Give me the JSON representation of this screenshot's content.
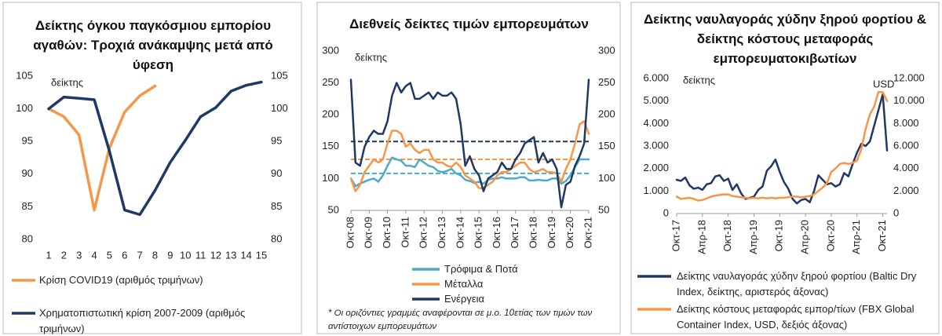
{
  "chart_data": [
    {
      "type": "line",
      "title": "Δείκτης όγκου παγκόσμιου εμπορίου αγαθών: Τροχιά ανάκαμψης μετά από ύφεση",
      "y_label": "δείκτης",
      "categories": [
        "1",
        "2",
        "3",
        "4",
        "5",
        "6",
        "7",
        "8",
        "9",
        "10",
        "11",
        "12",
        "13",
        "14",
        "15"
      ],
      "series": [
        {
          "name": "Κρίση COVID19 (αριθμός τριμήνων)",
          "color": "#f79646",
          "values": [
            100,
            98.8,
            96,
            84.5,
            94,
            99.5,
            102,
            103.5,
            null,
            null,
            null,
            null,
            null,
            null,
            null
          ]
        },
        {
          "name": "Χρηματοπιστωτική κρίση 2007-2009 (αριθμός τριμήνων)",
          "color": "#1f3864",
          "values": [
            100,
            101.8,
            101.6,
            101.4,
            93.5,
            84.5,
            83.8,
            87.5,
            91.8,
            95.2,
            98.8,
            100.2,
            102.7,
            103.6,
            104.1
          ]
        }
      ],
      "ylim": [
        80,
        105
      ],
      "yticks": [
        80,
        85,
        90,
        95,
        100,
        105
      ],
      "y2lim": [
        80,
        105
      ],
      "y2ticks": [
        80,
        85,
        90,
        95,
        100,
        105
      ]
    },
    {
      "type": "line",
      "title": "Διεθνείς δείκτες τιμών εμπορευμάτων",
      "y_label": "δείκτης",
      "note": "* Οι οριζόντιες γραμμές αναφέρονται σε μ.ο. 10ετίας των τιμών των αντίστοιχων εμπορευμάτων",
      "x": [
        "2008-10",
        "2009-01",
        "2009-04",
        "2009-07",
        "2009-10",
        "2010-01",
        "2010-04",
        "2010-07",
        "2010-10",
        "2011-01",
        "2011-04",
        "2011-07",
        "2011-10",
        "2012-01",
        "2012-04",
        "2012-07",
        "2012-10",
        "2013-01",
        "2013-04",
        "2013-07",
        "2013-10",
        "2014-01",
        "2014-04",
        "2014-07",
        "2014-10",
        "2015-01",
        "2015-04",
        "2015-07",
        "2015-10",
        "2016-01",
        "2016-04",
        "2016-07",
        "2016-10",
        "2017-01",
        "2017-04",
        "2017-07",
        "2017-10",
        "2018-01",
        "2018-04",
        "2018-07",
        "2018-10",
        "2019-01",
        "2019-04",
        "2019-07",
        "2019-10",
        "2020-01",
        "2020-04",
        "2020-07",
        "2020-10",
        "2021-01",
        "2021-04",
        "2021-07",
        "2021-10"
      ],
      "xlim": [
        "2008-10",
        "2021-10"
      ],
      "xticks": [
        {
          "value": "2008-10",
          "label": "Οκτ-08"
        },
        {
          "value": "2009-10",
          "label": "Οκτ-09"
        },
        {
          "value": "2010-10",
          "label": "Οκτ-10"
        },
        {
          "value": "2011-10",
          "label": "Οκτ-11"
        },
        {
          "value": "2012-10",
          "label": "Οκτ-12"
        },
        {
          "value": "2013-10",
          "label": "Οκτ-13"
        },
        {
          "value": "2014-10",
          "label": "Οκτ-14"
        },
        {
          "value": "2015-10",
          "label": "Οκτ-15"
        },
        {
          "value": "2016-10",
          "label": "Οκτ-16"
        },
        {
          "value": "2017-10",
          "label": "Οκτ-17"
        },
        {
          "value": "2018-10",
          "label": "Οκτ-18"
        },
        {
          "value": "2019-10",
          "label": "Οκτ-19"
        },
        {
          "value": "2020-10",
          "label": "Οκτ-20"
        },
        {
          "value": "2021-10",
          "label": "Οκτ-21"
        }
      ],
      "series": [
        {
          "name": "Τρόφιμα & Ποτά",
          "color": "#4bacc6",
          "values": [
            100,
            88,
            92,
            95,
            98,
            100,
            95,
            105,
            120,
            133,
            130,
            128,
            120,
            120,
            118,
            130,
            125,
            120,
            118,
            112,
            110,
            112,
            115,
            108,
            105,
            98,
            96,
            93,
            95,
            92,
            98,
            100,
            100,
            102,
            100,
            100,
            100,
            102,
            102,
            97,
            97,
            98,
            97,
            97,
            100,
            100,
            92,
            96,
            105,
            118,
            130,
            130,
            130
          ]
        },
        {
          "name": "Μέταλλα",
          "color": "#f79646",
          "values": [
            100,
            80,
            90,
            110,
            120,
            130,
            125,
            130,
            155,
            175,
            175,
            170,
            150,
            155,
            145,
            140,
            145,
            145,
            130,
            125,
            125,
            120,
            118,
            125,
            118,
            105,
            100,
            95,
            85,
            85,
            90,
            95,
            105,
            110,
            110,
            115,
            120,
            125,
            125,
            115,
            110,
            112,
            115,
            110,
            110,
            108,
            95,
            115,
            130,
            155,
            185,
            190,
            170
          ]
        },
        {
          "name": "Ενέργεια",
          "color": "#1f3864",
          "values": [
            255,
            125,
            120,
            150,
            165,
            175,
            170,
            170,
            190,
            230,
            250,
            235,
            245,
            250,
            225,
            225,
            230,
            235,
            225,
            235,
            230,
            230,
            235,
            225,
            185,
            120,
            135,
            115,
            105,
            80,
            100,
            105,
            110,
            125,
            115,
            115,
            130,
            140,
            155,
            160,
            165,
            125,
            140,
            125,
            130,
            115,
            55,
            90,
            95,
            120,
            135,
            155,
            255
          ]
        }
      ],
      "reference_lines": [
        {
          "value": 108,
          "color": "#4bacc6"
        },
        {
          "value": 130,
          "color": "#f79646"
        },
        {
          "value": 158,
          "color": "#1f3864"
        }
      ],
      "ylim": [
        50,
        300
      ],
      "yticks": [
        50,
        100,
        150,
        200,
        250,
        300
      ],
      "y2lim": [
        50,
        300
      ],
      "y2ticks": [
        50,
        100,
        150,
        200,
        250,
        300
      ]
    },
    {
      "type": "line",
      "title": "Δείκτης ναυλαγοράς χύδην ξηρού φορτίου & δείκτης κόστους μεταφοράς εμπορευματοκιβωτίων",
      "y_label": "δείκτης",
      "y2_label": "USD",
      "x": [
        "2017-10",
        "2017-11",
        "2017-12",
        "2018-01",
        "2018-02",
        "2018-03",
        "2018-04",
        "2018-05",
        "2018-06",
        "2018-07",
        "2018-08",
        "2018-09",
        "2018-10",
        "2018-11",
        "2018-12",
        "2019-01",
        "2019-02",
        "2019-03",
        "2019-04",
        "2019-05",
        "2019-06",
        "2019-07",
        "2019-08",
        "2019-09",
        "2019-10",
        "2019-11",
        "2019-12",
        "2020-01",
        "2020-02",
        "2020-03",
        "2020-04",
        "2020-05",
        "2020-06",
        "2020-07",
        "2020-08",
        "2020-09",
        "2020-10",
        "2020-11",
        "2020-12",
        "2021-01",
        "2021-02",
        "2021-03",
        "2021-04",
        "2021-05",
        "2021-06",
        "2021-07",
        "2021-08",
        "2021-09",
        "2021-10",
        "2021-11"
      ],
      "xlim": [
        "2017-10",
        "2021-11"
      ],
      "xticks": [
        {
          "value": "2017-10",
          "label": "Οκτ-17"
        },
        {
          "value": "2018-04",
          "label": "Απρ-18"
        },
        {
          "value": "2018-10",
          "label": "Οκτ-18"
        },
        {
          "value": "2019-04",
          "label": "Απρ-19"
        },
        {
          "value": "2019-10",
          "label": "Οκτ-19"
        },
        {
          "value": "2020-04",
          "label": "Απρ-20"
        },
        {
          "value": "2020-10",
          "label": "Οκτ-20"
        },
        {
          "value": "2021-04",
          "label": "Απρ-21"
        },
        {
          "value": "2021-10",
          "label": "Οκτ-21"
        }
      ],
      "series": [
        {
          "name": "Δείκτης ναυλαγοράς χύδην ξηρού φορτίου (Baltic Dry Index, δείκτης, αριστερός άξονας)",
          "color": "#1f3864",
          "values": [
            1500,
            1450,
            1600,
            1250,
            1100,
            1150,
            1050,
            1300,
            1350,
            1650,
            1700,
            1450,
            1550,
            1050,
            1300,
            900,
            650,
            700,
            750,
            1050,
            1200,
            1900,
            2100,
            2400,
            1850,
            1400,
            1100,
            650,
            450,
            600,
            650,
            500,
            1000,
            1700,
            1500,
            1300,
            1350,
            1200,
            1300,
            1800,
            1650,
            2200,
            2700,
            3100,
            3000,
            3200,
            3900,
            4600,
            5300,
            2800
          ]
        },
        {
          "name": "Δείκτης κόστους μεταφοράς εμπορ/τίων (FBX Global Container Index, USD, δεξιός άξονας)",
          "color": "#f79646",
          "axis": "y2",
          "values": [
            1500,
            1300,
            1350,
            1400,
            1300,
            1150,
            1200,
            1350,
            1500,
            1600,
            1650,
            1700,
            1700,
            1550,
            1500,
            1450,
            1400,
            1350,
            1400,
            1350,
            1400,
            1350,
            1400,
            1350,
            1400,
            1400,
            1450,
            1500,
            1500,
            1450,
            1500,
            1550,
            1700,
            2000,
            2300,
            2700,
            3700,
            4000,
            4400,
            4500,
            4400,
            4500,
            4700,
            5700,
            7500,
            8800,
            9500,
            10800,
            10800,
            10000
          ]
        }
      ],
      "ylim": [
        0,
        6000
      ],
      "yticks": [
        0,
        {
          "value": 1000,
          "label": "1.000"
        },
        {
          "value": 2000,
          "label": "2.000"
        },
        {
          "value": 3000,
          "label": "3.000"
        },
        {
          "value": 4000,
          "label": "4.000"
        },
        {
          "value": 5000,
          "label": "5.000"
        },
        {
          "value": 6000,
          "label": "6.000"
        }
      ],
      "y2lim": [
        0,
        12000
      ],
      "y2ticks": [
        0,
        {
          "value": 2000,
          "label": "2.000"
        },
        {
          "value": 4000,
          "label": "4.000"
        },
        {
          "value": 6000,
          "label": "6.000"
        },
        {
          "value": 8000,
          "label": "8.000"
        },
        {
          "value": 10000,
          "label": "10.000"
        },
        {
          "value": 12000,
          "label": "12.000"
        }
      ]
    }
  ]
}
